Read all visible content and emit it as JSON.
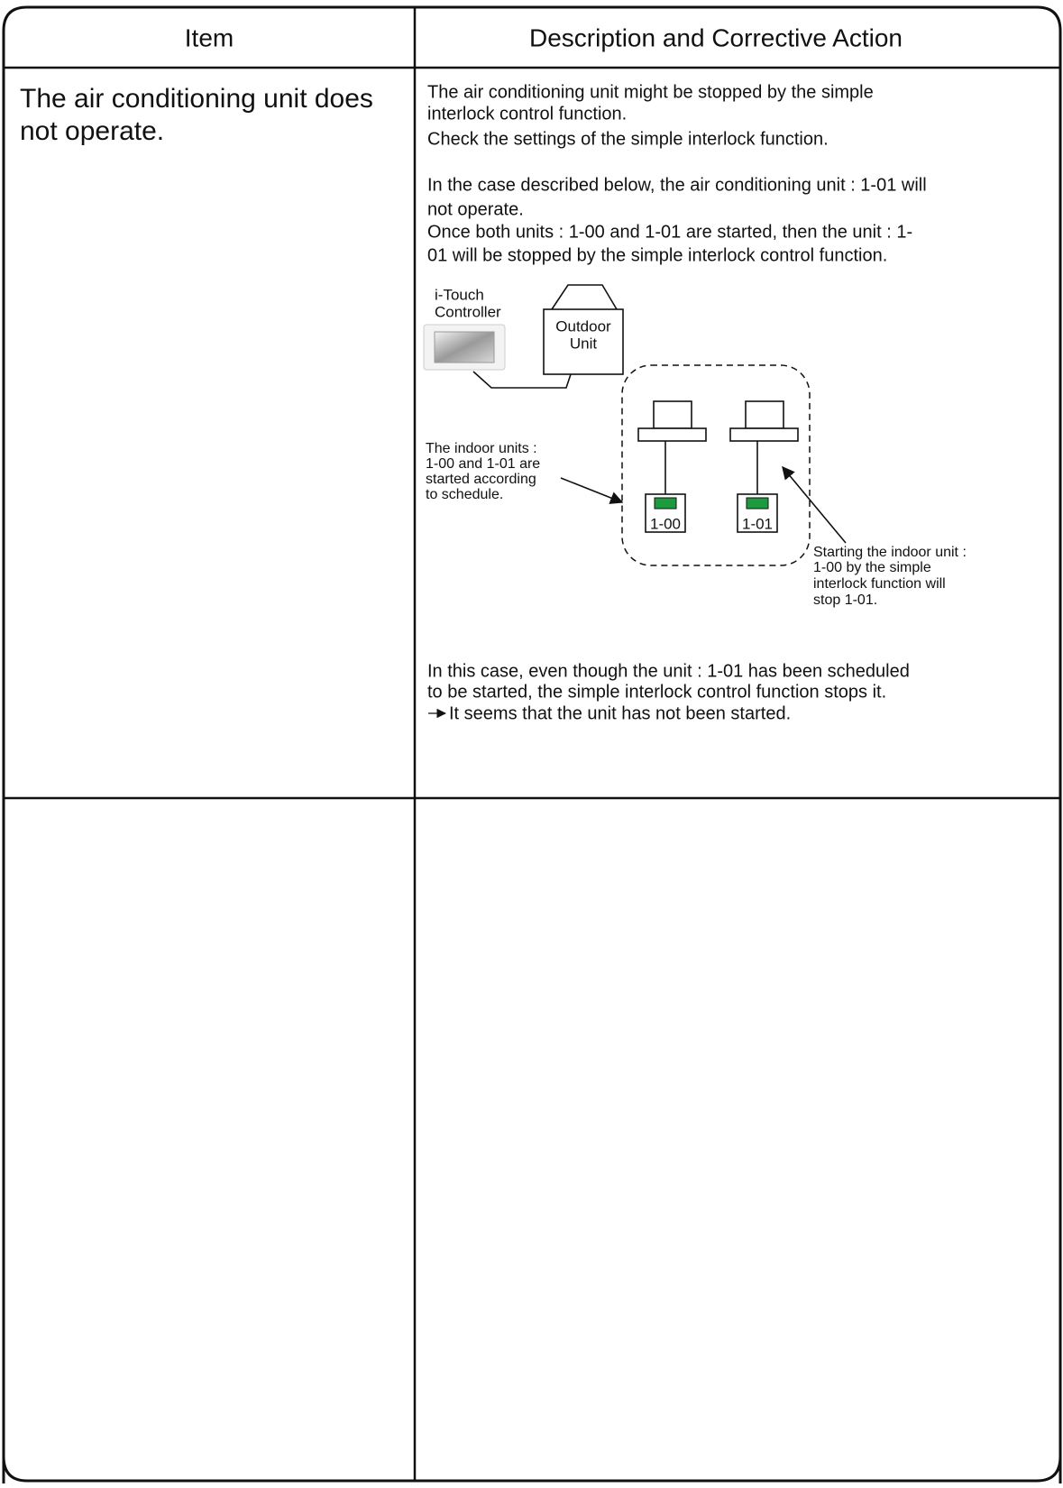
{
  "table": {
    "headers": [
      "Item",
      "Description and Corrective Action"
    ],
    "rows": [
      {
        "item": [
          "The air conditioning unit does",
          "not operate."
        ],
        "description": {
          "paragraphs": [
            [
              "The air conditioning unit might be stopped by the simple",
              "interlock control function.",
              "Check the settings of the simple interlock function."
            ],
            [
              "In the case described below, the air conditioning unit : 1-01 will",
              "not operate.",
              "Once both units : 1-00 and 1-01 are started, then the unit : 1-",
              "01 will be stopped by the simple interlock control function."
            ]
          ],
          "diagram": {
            "controller_label": [
              "i-Touch",
              "Controller"
            ],
            "outdoor_label": [
              "Outdoor",
              "Unit"
            ],
            "indoor_units": [
              "1-00",
              "1-01"
            ],
            "left_note": [
              "The indoor units :",
              "1-00 and 1-01 are",
              "started according",
              "to schedule."
            ],
            "right_note": [
              "Starting the indoor unit :",
              "1-00 by the simple",
              "interlock function will",
              "stop 1-01."
            ]
          },
          "conclusion": [
            "In this case, even though the unit : 1-01 has been scheduled",
            "to be started, the simple interlock control function stops it.",
            "It seems that the unit has not been started."
          ]
        }
      }
    ]
  }
}
